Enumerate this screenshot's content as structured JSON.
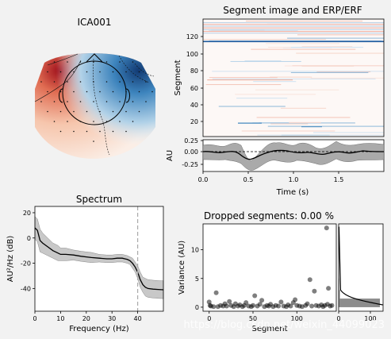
{
  "topomap": {
    "title": "ICA001",
    "colors": {
      "neg": "#1f5a9e",
      "pos": "#b5121b"
    }
  },
  "image_panel": {
    "title": "Segment image and ERP/ERF",
    "ylabel": "Segment",
    "yticks": [
      "20",
      "40",
      "60",
      "80",
      "100",
      "120"
    ],
    "ylim": [
      0,
      140
    ]
  },
  "erp_panel": {
    "ylabel": "AU",
    "yticks": [
      "0.25",
      "0.00",
      "-0.25"
    ],
    "xticks": [
      "0.0",
      "0.5",
      "1.0",
      "1.5"
    ],
    "xlabel": "Time (s)"
  },
  "dropped": {
    "title": "Dropped segments: 0.00 %"
  },
  "watermark": "https://blog.csdn.net/weixin_44099023",
  "chart_data": [
    {
      "type": "line",
      "title": "Spectrum",
      "xlabel": "Frequency (Hz)",
      "ylabel": "AU²/Hz (dB)",
      "xlim": [
        0,
        50
      ],
      "ylim": [
        -58,
        25
      ],
      "xticks": [
        "0",
        "10",
        "20",
        "30",
        "40"
      ],
      "yticks": [
        "20",
        "0",
        "-20",
        "-40"
      ],
      "grid": false,
      "x": [
        0,
        1,
        2,
        3,
        5,
        7,
        9,
        10,
        12,
        15,
        18,
        20,
        22,
        25,
        28,
        30,
        32,
        34,
        35,
        36,
        37,
        38,
        39,
        40,
        41,
        42,
        43,
        44,
        46,
        48,
        50
      ],
      "y": [
        8,
        6,
        -2,
        -4,
        -7,
        -10,
        -12,
        -13,
        -13,
        -13.5,
        -14.5,
        -15,
        -15.5,
        -16,
        -16.5,
        -16.5,
        -16,
        -16,
        -16.5,
        -17,
        -18,
        -20,
        -23,
        -27,
        -33,
        -37,
        -39,
        -40,
        -40.5,
        -40.8,
        -41
      ],
      "band": [
        9,
        9,
        9,
        8,
        7,
        6,
        6,
        5,
        5,
        4,
        4,
        4,
        4,
        3,
        3,
        3,
        3,
        3,
        3,
        3,
        3,
        4,
        4,
        5,
        6,
        6,
        7,
        7,
        7,
        7,
        7
      ],
      "vline": 40
    },
    {
      "type": "scatter",
      "xlabel": "Segment",
      "ylabel": "Variance (AU)",
      "xlim": [
        -7,
        145
      ],
      "ylim": [
        -0.7,
        14.5
      ],
      "xticks": [
        "0",
        "50",
        "100"
      ],
      "yticks": [
        "0",
        "5",
        "10"
      ],
      "points": [
        [
          0,
          0.9
        ],
        [
          1,
          0.3
        ],
        [
          2,
          0.2
        ],
        [
          5,
          0.1
        ],
        [
          8,
          2.5
        ],
        [
          10,
          0.1
        ],
        [
          13,
          0.3
        ],
        [
          16,
          0.2
        ],
        [
          18,
          0.6
        ],
        [
          20,
          0.2
        ],
        [
          23,
          1.0
        ],
        [
          25,
          0.3
        ],
        [
          28,
          0.1
        ],
        [
          30,
          0.6
        ],
        [
          33,
          0.2
        ],
        [
          35,
          0.4
        ],
        [
          38,
          0.1
        ],
        [
          40,
          0.3
        ],
        [
          42,
          0.8
        ],
        [
          45,
          0.2
        ],
        [
          48,
          0.1
        ],
        [
          50,
          0.3
        ],
        [
          52,
          2.0
        ],
        [
          55,
          0.2
        ],
        [
          58,
          0.5
        ],
        [
          60,
          1.2
        ],
        [
          63,
          0.1
        ],
        [
          66,
          0.3
        ],
        [
          68,
          0.2
        ],
        [
          70,
          0.5
        ],
        [
          73,
          0.1
        ],
        [
          76,
          0.3
        ],
        [
          79,
          0.2
        ],
        [
          82,
          0.9
        ],
        [
          85,
          0.2
        ],
        [
          88,
          0.1
        ],
        [
          90,
          0.4
        ],
        [
          93,
          0.2
        ],
        [
          96,
          0.8
        ],
        [
          98,
          1.3
        ],
        [
          100,
          0.3
        ],
        [
          103,
          0.2
        ],
        [
          106,
          0.1
        ],
        [
          110,
          0.3
        ],
        [
          112,
          0.6
        ],
        [
          115,
          4.8
        ],
        [
          117,
          0.2
        ],
        [
          120,
          2.8
        ],
        [
          122,
          0.3
        ],
        [
          125,
          0.2
        ],
        [
          128,
          0.4
        ],
        [
          130,
          0.1
        ],
        [
          132,
          0.3
        ],
        [
          134,
          13.8
        ],
        [
          135,
          0.5
        ],
        [
          136,
          3.3
        ],
        [
          138,
          0.2
        ],
        [
          140,
          0.3
        ]
      ]
    },
    {
      "type": "histogram",
      "xticks": [
        "0",
        "100"
      ],
      "xlim": [
        0,
        140
      ],
      "bins": [
        {
          "from": 0,
          "to": 1.5,
          "count": 130
        },
        {
          "from": 1.5,
          "to": 3,
          "count": 4
        },
        {
          "from": 3,
          "to": 5,
          "count": 2
        },
        {
          "from": 5,
          "to": 14,
          "count": 1
        }
      ]
    }
  ]
}
